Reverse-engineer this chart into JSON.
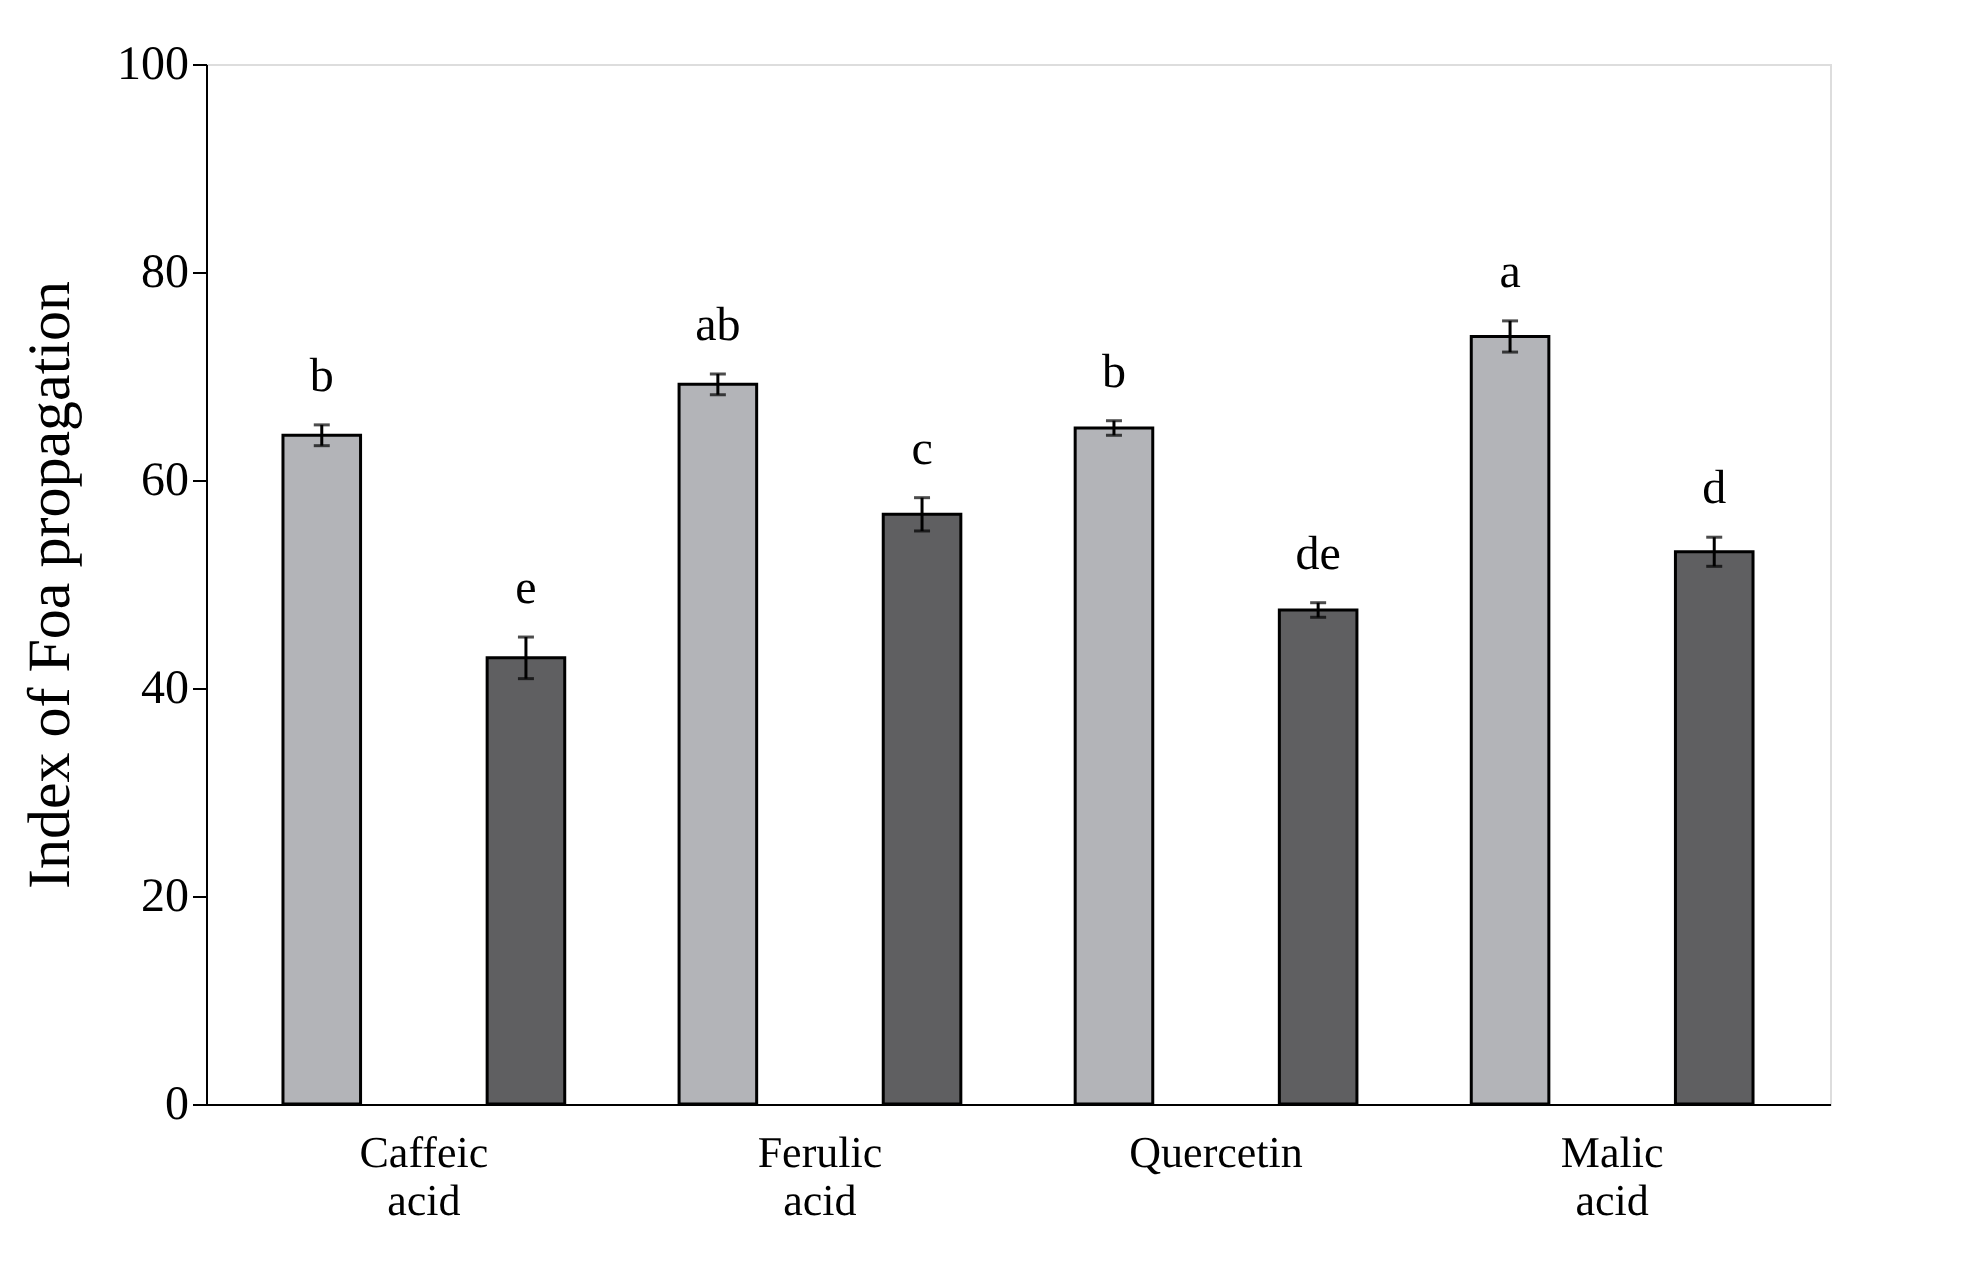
{
  "chart_data": {
    "type": "bar",
    "ylabel": "Index of Foa propagation",
    "categories": [
      "Caffeic acid",
      "Ferulic acid",
      "Quercetin",
      "Malic acid"
    ],
    "series": [
      {
        "color": "#b3b4b8",
        "values": [
          64.3,
          69.2,
          65.0,
          73.8
        ],
        "errors": [
          1.0,
          1.0,
          0.7,
          1.5
        ]
      },
      {
        "color": "#5f5f61",
        "values": [
          42.9,
          56.7,
          47.5,
          53.1
        ],
        "errors": [
          2.0,
          1.6,
          0.7,
          1.4
        ]
      }
    ],
    "annotations": [
      "b",
      "e",
      "ab",
      "c",
      "b",
      "de",
      "a",
      "d"
    ],
    "ylim": [
      0,
      100
    ],
    "yticks": [
      0,
      20,
      40,
      60,
      80,
      100
    ],
    "grid": false
  }
}
